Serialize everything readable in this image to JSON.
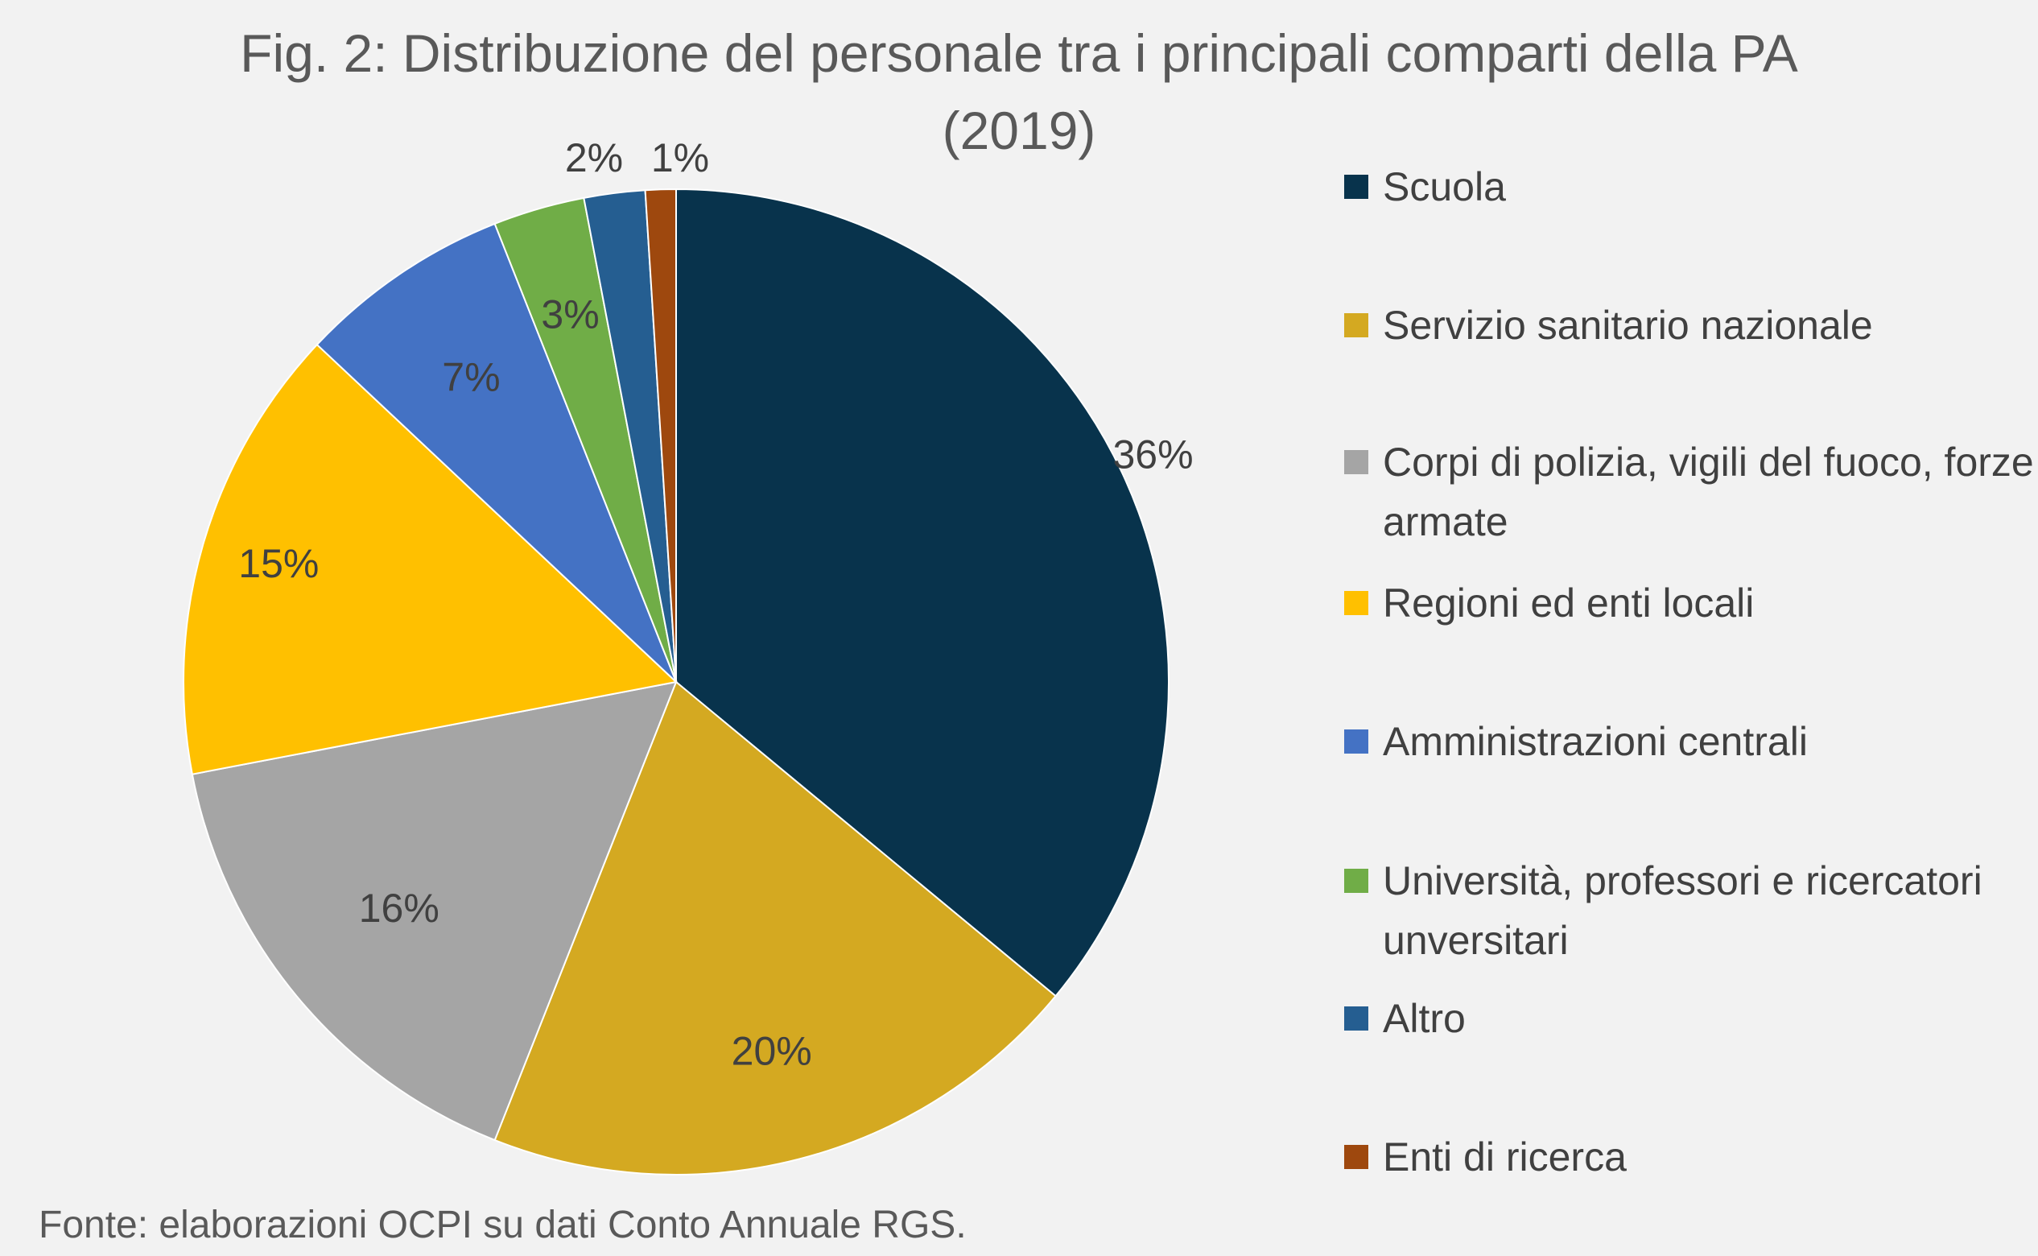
{
  "chart_data": {
    "type": "pie",
    "title": "Fig. 2: Distribuzione del personale tra i principali comparti della PA",
    "subtitle": "(2019)",
    "legend_position": "right",
    "slices": [
      {
        "name": "Scuola",
        "value": 36,
        "label": "36%",
        "color": "#08334c"
      },
      {
        "name": "Servizio sanitario nazionale",
        "value": 20,
        "label": "20%",
        "color": "#d4a921"
      },
      {
        "name": "Corpi di polizia, vigili del fuoco, forze armate",
        "value": 16,
        "label": "16%",
        "color": "#a5a5a5"
      },
      {
        "name": "Regioni ed enti locali",
        "value": 15,
        "label": "15%",
        "color": "#ffc000"
      },
      {
        "name": "Amministrazioni centrali",
        "value": 7,
        "label": "7%",
        "color": "#4472c4"
      },
      {
        "name": "Università, professori e ricercatori unversitari",
        "value": 3,
        "label": "3%",
        "color": "#70ad47"
      },
      {
        "name": "Altro",
        "value": 2,
        "label": "2%",
        "color": "#255e91"
      },
      {
        "name": "Enti di ricerca",
        "value": 1,
        "label": "1%",
        "color": "#9e480e"
      }
    ]
  },
  "footer": {
    "source": "Fonte: elaborazioni OCPI su dati Conto Annuale RGS."
  }
}
